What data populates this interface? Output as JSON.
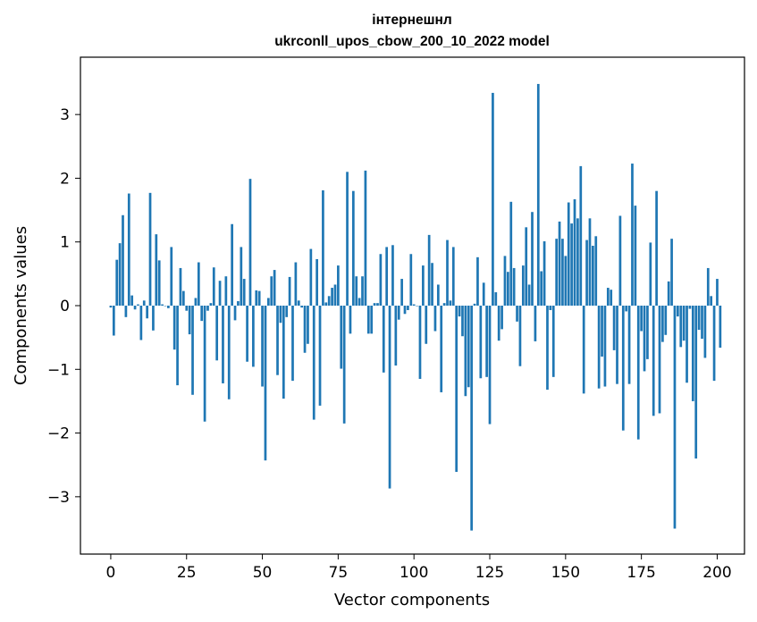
{
  "chart_data": {
    "type": "bar",
    "title_line1": "інтернешнл",
    "title_line2": "ukrconll_upos_cbow_200_10_2022 model",
    "xlabel": "Vector components",
    "ylabel": "Components values",
    "xlim": [
      -10,
      209
    ],
    "ylim": [
      -3.9,
      3.9
    ],
    "xticks": [
      0,
      25,
      50,
      75,
      100,
      125,
      150,
      175,
      200
    ],
    "yticks": [
      -3,
      -2,
      -1,
      0,
      1,
      2,
      3
    ],
    "grid": false,
    "bar_color": "#1f77b4",
    "values": [
      -0.03,
      -0.47,
      0.72,
      0.98,
      1.42,
      -0.18,
      1.76,
      0.16,
      -0.06,
      0.02,
      -0.54,
      0.08,
      -0.2,
      1.77,
      -0.39,
      1.12,
      0.71,
      0.02,
      0.0,
      -0.04,
      0.92,
      -0.69,
      -1.25,
      0.59,
      0.23,
      -0.08,
      -0.45,
      -1.4,
      0.12,
      0.68,
      -0.24,
      -1.82,
      -0.08,
      0.04,
      0.6,
      -0.86,
      0.39,
      -1.22,
      0.46,
      -1.47,
      1.28,
      -0.23,
      0.07,
      0.92,
      0.42,
      -0.88,
      1.99,
      -0.96,
      0.24,
      0.23,
      -1.27,
      -2.43,
      0.12,
      0.46,
      0.56,
      -1.09,
      -0.27,
      -1.46,
      -0.18,
      0.45,
      -1.18,
      0.68,
      0.08,
      -0.03,
      -0.74,
      -0.6,
      0.89,
      -1.79,
      0.73,
      -1.57,
      1.81,
      0.05,
      0.15,
      0.28,
      0.33,
      0.63,
      -0.99,
      -1.85,
      2.1,
      -0.44,
      1.8,
      0.46,
      0.12,
      0.46,
      2.12,
      -0.44,
      -0.44,
      0.04,
      0.04,
      0.81,
      -1.05,
      0.92,
      -2.87,
      0.95,
      -0.94,
      -0.22,
      0.42,
      -0.13,
      -0.07,
      0.81,
      0.02,
      0.0,
      -1.15,
      0.63,
      -0.6,
      1.11,
      0.67,
      -0.4,
      0.33,
      -1.36,
      0.04,
      1.03,
      0.08,
      0.92,
      -2.61,
      -0.17,
      -0.48,
      -1.42,
      -1.28,
      -3.53,
      0.03,
      0.76,
      -1.14,
      0.36,
      -1.12,
      -1.86,
      3.34,
      0.21,
      -0.55,
      -0.37,
      0.78,
      0.53,
      1.63,
      0.59,
      -0.25,
      -0.95,
      0.63,
      1.23,
      0.33,
      1.47,
      -0.56,
      3.48,
      0.54,
      1.01,
      -1.32,
      -0.07,
      -1.12,
      1.05,
      1.32,
      1.05,
      0.78,
      1.62,
      1.29,
      1.67,
      1.37,
      2.19,
      -1.38,
      1.03,
      1.37,
      0.94,
      1.09,
      -1.3,
      -0.8,
      -1.27,
      0.28,
      0.25,
      -0.7,
      -1.23,
      1.41,
      -1.96,
      -0.09,
      -1.23,
      2.23,
      1.57,
      -2.1,
      -0.4,
      -1.03,
      -0.84,
      0.99,
      -1.73,
      1.8,
      -1.69,
      -0.57,
      -0.46,
      0.38,
      1.05,
      -3.5,
      -0.17,
      -0.65,
      -0.55,
      -1.21,
      -0.05,
      -1.5,
      -2.4,
      -0.38,
      -0.52,
      -0.82,
      0.59,
      0.15,
      -1.18,
      0.42,
      -0.66
    ]
  }
}
